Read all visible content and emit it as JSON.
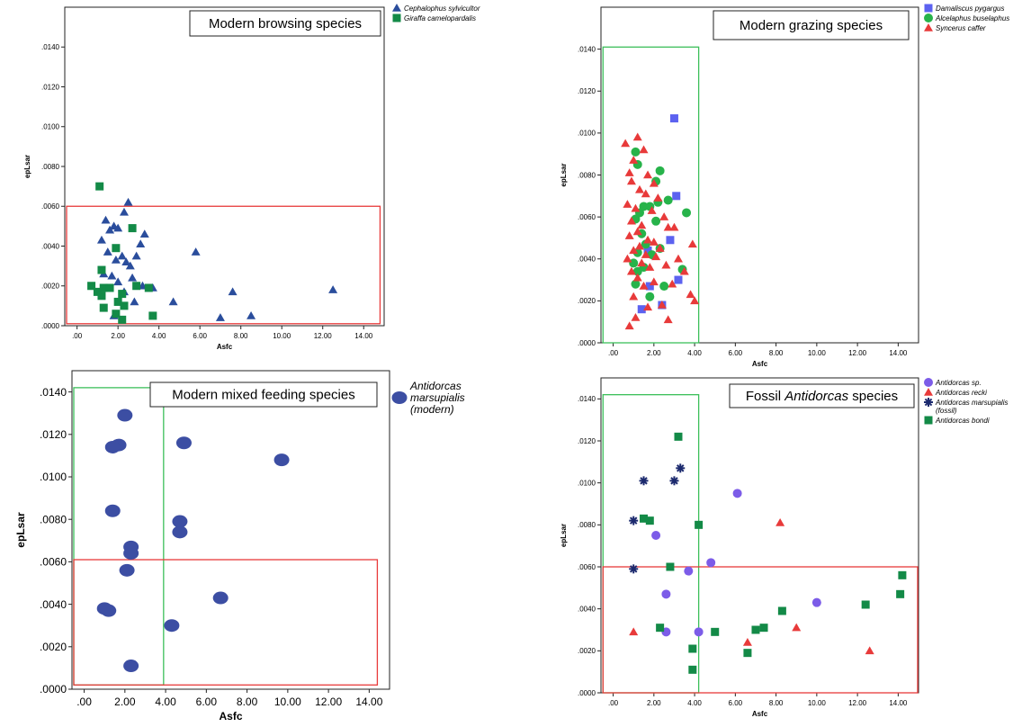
{
  "chart_data": [
    {
      "type": "scatter",
      "title": "Modern browsing species",
      "xlabel": "Asfc",
      "ylabel": "epLsar",
      "xlim": [
        -0.6,
        15
      ],
      "ylim": [
        0,
        0.016
      ],
      "xticks": [
        ".00",
        "2.00",
        "4.00",
        "6.00",
        "8.00",
        "10.00",
        "12.00",
        "14.00"
      ],
      "yticks": [
        ".0000",
        ".0020",
        ".0040",
        ".0060",
        ".0080",
        ".0100",
        ".0120",
        ".0140"
      ],
      "box": {
        "color": "#e83a3a",
        "x": [
          -0.6,
          14.8
        ],
        "y": [
          0.0001,
          0.006
        ]
      },
      "series": [
        {
          "name": "Cephalophus sylvicultor",
          "marker": "triangle",
          "color": "#2a4d9c",
          "points": [
            [
              1.4,
              0.0053
            ],
            [
              1.6,
              0.0048
            ],
            [
              1.8,
              0.005
            ],
            [
              2.0,
              0.0049
            ],
            [
              2.3,
              0.0057
            ],
            [
              2.5,
              0.0062
            ],
            [
              1.2,
              0.0043
            ],
            [
              1.5,
              0.0037
            ],
            [
              1.9,
              0.0033
            ],
            [
              2.2,
              0.0035
            ],
            [
              2.4,
              0.0032
            ],
            [
              2.6,
              0.003
            ],
            [
              3.1,
              0.0041
            ],
            [
              3.3,
              0.0046
            ],
            [
              2.9,
              0.0035
            ],
            [
              1.3,
              0.0026
            ],
            [
              1.7,
              0.0025
            ],
            [
              2.0,
              0.0022
            ],
            [
              2.7,
              0.0024
            ],
            [
              3.2,
              0.002
            ],
            [
              2.3,
              0.0017
            ],
            [
              2.8,
              0.0012
            ],
            [
              1.8,
              0.0005
            ],
            [
              3.7,
              0.0019
            ],
            [
              4.7,
              0.0012
            ],
            [
              5.8,
              0.0037
            ],
            [
              7.6,
              0.0017
            ],
            [
              7.0,
              0.0004
            ],
            [
              8.5,
              0.0005
            ],
            [
              12.5,
              0.0018
            ]
          ]
        },
        {
          "name": "Giraffa camelopardalis",
          "marker": "square",
          "color": "#138a47",
          "points": [
            [
              1.1,
              0.007
            ],
            [
              2.7,
              0.0049
            ],
            [
              1.9,
              0.0039
            ],
            [
              1.2,
              0.0028
            ],
            [
              0.7,
              0.002
            ],
            [
              1.0,
              0.0017
            ],
            [
              1.3,
              0.0019
            ],
            [
              1.6,
              0.0019
            ],
            [
              1.2,
              0.0015
            ],
            [
              2.2,
              0.0016
            ],
            [
              2.0,
              0.0012
            ],
            [
              2.3,
              0.001
            ],
            [
              1.3,
              0.0009
            ],
            [
              1.9,
              0.0006
            ],
            [
              2.2,
              0.0003
            ],
            [
              2.9,
              0.002
            ],
            [
              3.5,
              0.0019
            ],
            [
              3.7,
              0.0005
            ]
          ]
        }
      ]
    },
    {
      "type": "scatter",
      "title": "Modern grazing species",
      "xlabel": "Asfc",
      "ylabel": "epLsar",
      "xlim": [
        -0.6,
        15
      ],
      "ylim": [
        0,
        0.016
      ],
      "xticks": [
        ".00",
        "2.00",
        "4.00",
        "6.00",
        "8.00",
        "10.00",
        "12.00",
        "14.00"
      ],
      "yticks": [
        ".0000",
        ".0020",
        ".0040",
        ".0060",
        ".0080",
        ".0100",
        ".0120",
        ".0140"
      ],
      "box": {
        "color": "#3cbf5a",
        "x": [
          -0.5,
          4.2
        ],
        "y": [
          0.0,
          0.0141
        ]
      },
      "series": [
        {
          "name": "Damaliscus pygargus",
          "marker": "square",
          "color": "#5c62f0",
          "points": [
            [
              3.0,
              0.0107
            ],
            [
              3.1,
              0.007
            ],
            [
              2.8,
              0.0049
            ],
            [
              1.7,
              0.0044
            ],
            [
              3.2,
              0.003
            ],
            [
              1.8,
              0.0027
            ],
            [
              2.4,
              0.0018
            ],
            [
              1.4,
              0.0016
            ]
          ]
        },
        {
          "name": "Alcelaphus buselaphus",
          "marker": "circle",
          "color": "#27b34a",
          "points": [
            [
              1.1,
              0.0091
            ],
            [
              1.2,
              0.0085
            ],
            [
              2.3,
              0.0082
            ],
            [
              2.1,
              0.0077
            ],
            [
              2.7,
              0.0068
            ],
            [
              2.2,
              0.0067
            ],
            [
              1.5,
              0.0065
            ],
            [
              1.8,
              0.0065
            ],
            [
              1.3,
              0.0062
            ],
            [
              3.6,
              0.0062
            ],
            [
              2.1,
              0.0058
            ],
            [
              1.1,
              0.0059
            ],
            [
              1.4,
              0.0052
            ],
            [
              1.6,
              0.0047
            ],
            [
              2.3,
              0.0045
            ],
            [
              1.2,
              0.0043
            ],
            [
              1.9,
              0.0042
            ],
            [
              1.0,
              0.0038
            ],
            [
              1.5,
              0.0036
            ],
            [
              1.2,
              0.0034
            ],
            [
              3.4,
              0.0035
            ],
            [
              2.5,
              0.0027
            ],
            [
              1.8,
              0.0022
            ],
            [
              1.1,
              0.0028
            ]
          ]
        },
        {
          "name": "Syncerus caffer",
          "marker": "triangle",
          "color": "#e83a3a",
          "points": [
            [
              1.2,
              0.0098
            ],
            [
              0.6,
              0.0095
            ],
            [
              1.5,
              0.0092
            ],
            [
              1.0,
              0.0087
            ],
            [
              0.8,
              0.0081
            ],
            [
              1.7,
              0.008
            ],
            [
              0.9,
              0.0077
            ],
            [
              2.0,
              0.0076
            ],
            [
              1.3,
              0.0073
            ],
            [
              1.6,
              0.0071
            ],
            [
              2.2,
              0.0069
            ],
            [
              0.7,
              0.0066
            ],
            [
              1.1,
              0.0064
            ],
            [
              1.9,
              0.0063
            ],
            [
              2.5,
              0.006
            ],
            [
              0.9,
              0.0058
            ],
            [
              1.4,
              0.0056
            ],
            [
              2.7,
              0.0055
            ],
            [
              3.0,
              0.0055
            ],
            [
              1.2,
              0.0053
            ],
            [
              0.8,
              0.0051
            ],
            [
              1.7,
              0.0049
            ],
            [
              2.0,
              0.0048
            ],
            [
              1.3,
              0.0046
            ],
            [
              2.3,
              0.0045
            ],
            [
              1.0,
              0.0044
            ],
            [
              1.6,
              0.0042
            ],
            [
              0.7,
              0.004
            ],
            [
              2.1,
              0.0041
            ],
            [
              3.2,
              0.004
            ],
            [
              3.9,
              0.0047
            ],
            [
              1.4,
              0.0038
            ],
            [
              1.8,
              0.0036
            ],
            [
              2.6,
              0.0037
            ],
            [
              0.9,
              0.0034
            ],
            [
              1.2,
              0.0031
            ],
            [
              2.0,
              0.0029
            ],
            [
              3.5,
              0.0034
            ],
            [
              1.5,
              0.0027
            ],
            [
              2.9,
              0.0028
            ],
            [
              3.8,
              0.0023
            ],
            [
              4.0,
              0.002
            ],
            [
              1.0,
              0.0022
            ],
            [
              1.7,
              0.0017
            ],
            [
              2.4,
              0.0018
            ],
            [
              1.1,
              0.0012
            ],
            [
              2.7,
              0.0011
            ],
            [
              0.8,
              0.0008
            ]
          ]
        }
      ]
    },
    {
      "type": "scatter",
      "title": "Modern mixed feeding species",
      "xlabel": "Asfc",
      "ylabel": "epLsar",
      "xlim": [
        -0.6,
        15
      ],
      "ylim": [
        0,
        0.015
      ],
      "xticks": [
        ".00",
        "2.00",
        "4.00",
        "6.00",
        "8.00",
        "10.00",
        "12.00",
        "14.00"
      ],
      "yticks": [
        ".0000",
        ".0020",
        ".0040",
        ".0060",
        ".0080",
        ".0100",
        ".0120",
        ".0140"
      ],
      "boxes": [
        {
          "color": "#3cbf5a",
          "x": [
            -0.6,
            3.9
          ],
          "y": [
            0.0002,
            0.0142
          ]
        },
        {
          "color": "#e83a3a",
          "x": [
            -0.6,
            14.4
          ],
          "y": [
            0.0002,
            0.0061
          ]
        }
      ],
      "series": [
        {
          "name": "Antidorcas marsupialis (modern)",
          "marker": "ellipse",
          "color": "#3c4ea3",
          "points": [
            [
              2.0,
              0.0129
            ],
            [
              1.7,
              0.0115
            ],
            [
              1.4,
              0.0114
            ],
            [
              4.9,
              0.0116
            ],
            [
              9.7,
              0.0108
            ],
            [
              1.4,
              0.0084
            ],
            [
              4.7,
              0.0079
            ],
            [
              4.7,
              0.0074
            ],
            [
              2.3,
              0.0067
            ],
            [
              2.3,
              0.0064
            ],
            [
              2.1,
              0.0056
            ],
            [
              6.7,
              0.0043
            ],
            [
              1.0,
              0.0038
            ],
            [
              1.2,
              0.0037
            ],
            [
              4.3,
              0.003
            ],
            [
              2.3,
              0.0011
            ]
          ]
        }
      ]
    },
    {
      "type": "scatter",
      "title_parts": [
        "Fossil ",
        "Antidorcas",
        " species"
      ],
      "xlabel": "Asfc",
      "ylabel": "epLsar",
      "xlim": [
        -0.6,
        15
      ],
      "ylim": [
        0,
        0.015
      ],
      "xticks": [
        ".00",
        "2.00",
        "4.00",
        "6.00",
        "8.00",
        "10.00",
        "12.00",
        "14.00"
      ],
      "yticks": [
        ".0000",
        ".0020",
        ".0040",
        ".0060",
        ".0080",
        ".0100",
        ".0120",
        ".0140"
      ],
      "boxes": [
        {
          "color": "#3cbf5a",
          "x": [
            -0.5,
            4.2
          ],
          "y": [
            0.0,
            0.0142
          ]
        },
        {
          "color": "#e83a3a",
          "x": [
            -0.5,
            15.3
          ],
          "y": [
            0.0,
            0.006
          ]
        }
      ],
      "series": [
        {
          "name": "Antidorcas sp.",
          "marker": "circle",
          "color": "#7c5ce8",
          "points": [
            [
              6.1,
              0.0095
            ],
            [
              2.1,
              0.0075
            ],
            [
              4.8,
              0.0062
            ],
            [
              3.7,
              0.0058
            ],
            [
              2.6,
              0.0047
            ],
            [
              10.0,
              0.0043
            ],
            [
              2.6,
              0.0029
            ],
            [
              4.2,
              0.0029
            ]
          ]
        },
        {
          "name": "Antidorcas recki",
          "marker": "triangle",
          "color": "#e83a3a",
          "points": [
            [
              8.2,
              0.0081
            ],
            [
              1.0,
              0.0029
            ],
            [
              6.6,
              0.0024
            ],
            [
              9.0,
              0.0031
            ],
            [
              12.6,
              0.002
            ]
          ]
        },
        {
          "name": "Antidorcas marsupialis (fossil)",
          "marker": "star",
          "color": "#1c2a6e",
          "points": [
            [
              1.5,
              0.0101
            ],
            [
              3.3,
              0.0107
            ],
            [
              3.0,
              0.0101
            ],
            [
              1.0,
              0.0082
            ],
            [
              1.0,
              0.0059
            ]
          ]
        },
        {
          "name": "Antidorcas bondi",
          "marker": "square",
          "color": "#138a47",
          "points": [
            [
              3.2,
              0.0122
            ],
            [
              1.5,
              0.0083
            ],
            [
              1.8,
              0.0082
            ],
            [
              4.2,
              0.008
            ],
            [
              2.8,
              0.006
            ],
            [
              14.2,
              0.0056
            ],
            [
              14.1,
              0.0047
            ],
            [
              12.4,
              0.0042
            ],
            [
              8.3,
              0.0039
            ],
            [
              2.3,
              0.0031
            ],
            [
              7.0,
              0.003
            ],
            [
              7.4,
              0.0031
            ],
            [
              5.0,
              0.0029
            ],
            [
              3.9,
              0.0021
            ],
            [
              6.6,
              0.0019
            ],
            [
              3.9,
              0.0011
            ]
          ]
        }
      ]
    }
  ],
  "legends": {
    "mixed": {
      "lines": [
        "Antidorcas",
        "marsupialis",
        "(modern)"
      ]
    },
    "fossil": {
      "lines": [
        "Antidorcas sp.",
        "Antidorcas recki",
        "Antidorcas marsupialis",
        "(fossil)",
        "Antidorcas bondi"
      ]
    }
  }
}
